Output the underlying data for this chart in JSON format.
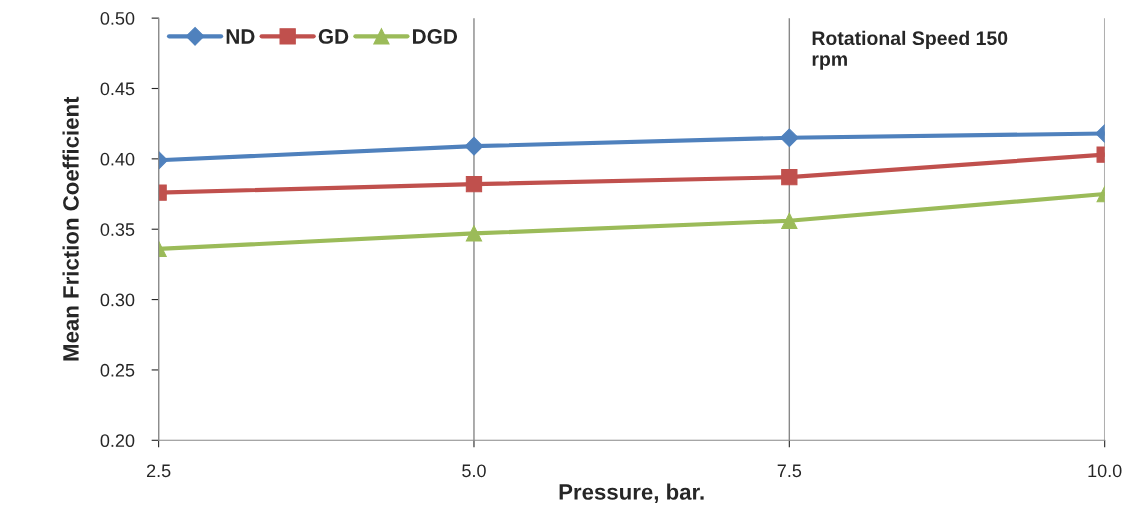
{
  "chart_data": {
    "type": "line",
    "xlabel": "Pressure, bar.",
    "ylabel": "Mean Friction Coefficient",
    "x": [
      2.5,
      5.0,
      7.5,
      10.0
    ],
    "series": [
      {
        "name": "ND",
        "color": "#4f81bd",
        "marker": "diamond",
        "values": [
          0.399,
          0.409,
          0.415,
          0.418
        ]
      },
      {
        "name": "GD",
        "color": "#c0504d",
        "marker": "square",
        "values": [
          0.376,
          0.382,
          0.387,
          0.403
        ]
      },
      {
        "name": "DGD",
        "color": "#9bbb59",
        "marker": "triangle",
        "values": [
          0.336,
          0.347,
          0.356,
          0.375
        ]
      }
    ],
    "xlim": [
      2.5,
      10.0
    ],
    "xticks": [
      {
        "value": 2.5,
        "label": "2.5"
      },
      {
        "value": 5.0,
        "label": "5.0"
      },
      {
        "value": 7.5,
        "label": "7.5"
      },
      {
        "value": 10.0,
        "label": "10.0"
      }
    ],
    "ylim": [
      0.2,
      0.5
    ],
    "yticks": [
      {
        "value": 0.2,
        "label": "0.20"
      },
      {
        "value": 0.25,
        "label": "0.25"
      },
      {
        "value": 0.3,
        "label": "0.30"
      },
      {
        "value": 0.35,
        "label": "0.35"
      },
      {
        "value": 0.4,
        "label": "0.40"
      },
      {
        "value": 0.45,
        "label": "0.45"
      },
      {
        "value": 0.5,
        "label": "0.50"
      }
    ],
    "grid": "x",
    "legend": "top left",
    "annotations": [
      "Rotational Speed 150\nrpm"
    ]
  }
}
